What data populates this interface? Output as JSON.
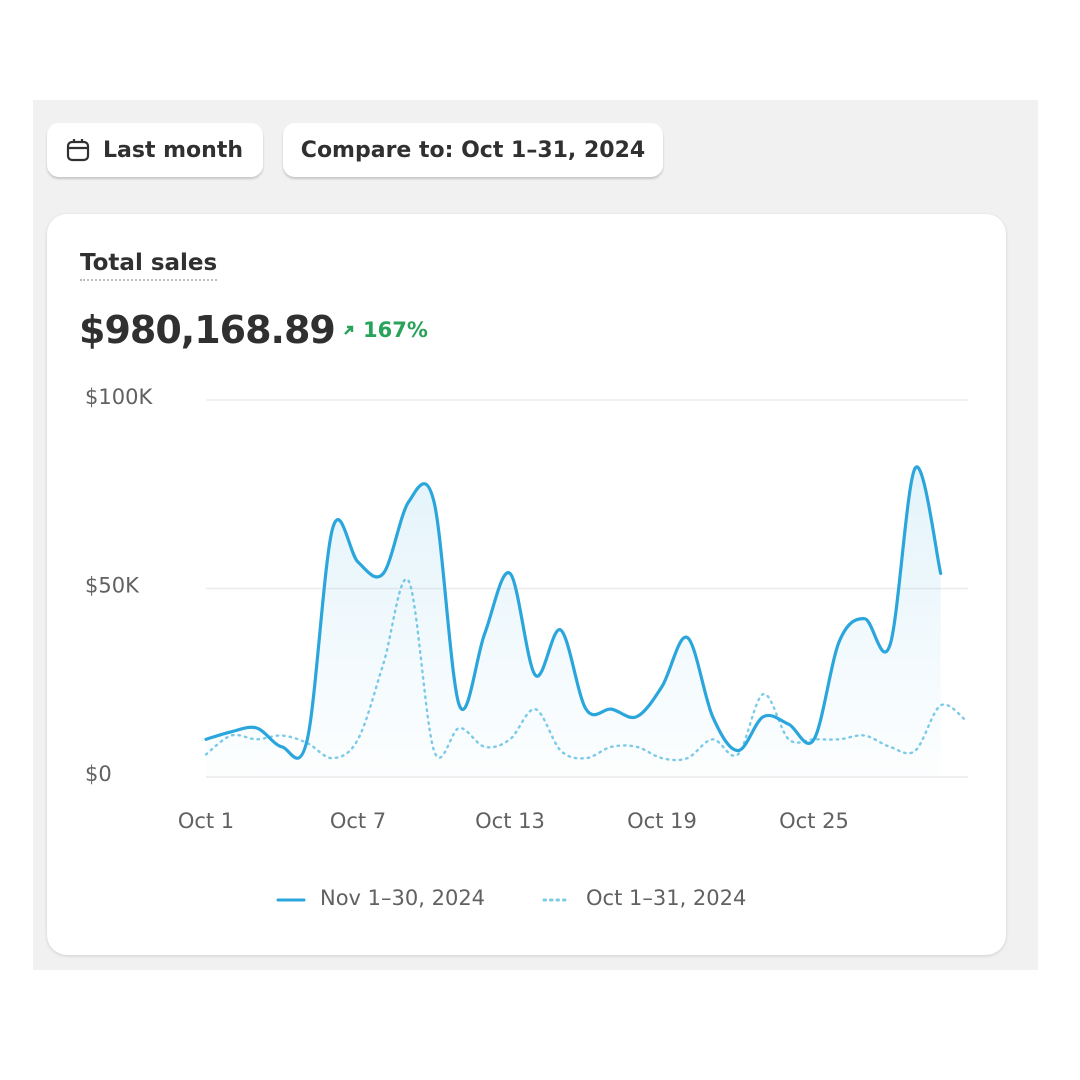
{
  "filters": {
    "period": "Last month",
    "compare": "Compare to: Oct 1–31, 2024"
  },
  "card": {
    "title": "Total sales",
    "total": "$980,168.89",
    "change": "167%"
  },
  "chart_data": {
    "type": "line",
    "categories": [
      "Oct 1",
      null,
      null,
      null,
      null,
      null,
      "Oct 7",
      null,
      null,
      null,
      null,
      null,
      "Oct 13",
      null,
      null,
      null,
      null,
      null,
      "Oct 19",
      null,
      null,
      null,
      null,
      null,
      "Oct 25",
      null,
      null,
      null,
      null,
      null,
      null
    ],
    "series": [
      {
        "name": "Nov 1–30, 2024",
        "color": "#2ba6dc",
        "style": "solid",
        "values": [
          10000,
          12000,
          13000,
          8000,
          10000,
          66000,
          57000,
          54000,
          73000,
          73000,
          19000,
          38000,
          54000,
          27000,
          39000,
          18000,
          18000,
          16000,
          24000,
          37000,
          16000,
          7000,
          16000,
          14000,
          10000,
          36000,
          42000,
          35000,
          82000,
          54000,
          null
        ]
      },
      {
        "name": "Oct 1–31, 2024",
        "color": "#7ccbe8",
        "style": "dotted",
        "values": [
          6000,
          11000,
          10000,
          11000,
          9000,
          5000,
          10000,
          30000,
          52000,
          7000,
          13000,
          8000,
          10000,
          18000,
          7000,
          5000,
          8000,
          8000,
          5000,
          5000,
          10000,
          6000,
          22000,
          10000,
          10000,
          10000,
          11000,
          8000,
          7000,
          19000,
          15000
        ]
      }
    ],
    "ylim": [
      0,
      100000
    ],
    "yticks": [
      {
        "value": 0,
        "label": "$0"
      },
      {
        "value": 50000,
        "label": "$50K"
      },
      {
        "value": 100000,
        "label": "$100K"
      }
    ],
    "grid": true,
    "legend": "bottom"
  }
}
